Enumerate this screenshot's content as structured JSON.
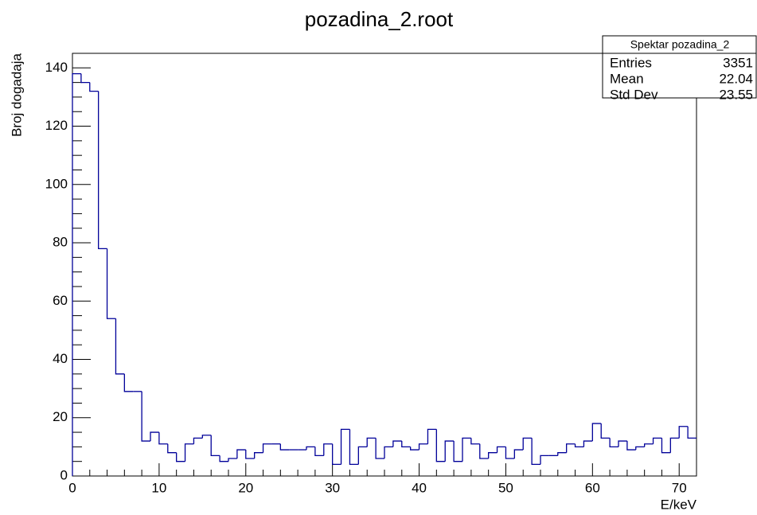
{
  "chart_data": {
    "type": "histogram",
    "title": "pozadina_2.root",
    "x_label": "E/keV",
    "y_label": "Broj dogadaja",
    "bins": [
      0,
      1,
      2,
      3,
      4,
      5,
      6,
      7,
      8,
      9,
      10,
      11,
      12,
      13,
      14,
      15,
      16,
      17,
      18,
      19,
      20,
      21,
      22,
      23,
      24,
      25,
      26,
      27,
      28,
      29,
      30,
      31,
      32,
      33,
      34,
      35,
      36,
      37,
      38,
      39,
      40,
      41,
      42,
      43,
      44,
      45,
      46,
      47,
      48,
      49,
      50,
      51,
      52,
      53,
      54,
      55,
      56,
      57,
      58,
      59,
      60,
      61,
      62,
      63,
      64,
      65,
      66,
      67,
      68,
      69,
      70,
      71,
      72
    ],
    "values": [
      138,
      135,
      132,
      78,
      54,
      35,
      29,
      29,
      12,
      15,
      11,
      8,
      5,
      11,
      13,
      14,
      7,
      5,
      6,
      9,
      6,
      8,
      11,
      11,
      9,
      9,
      9,
      10,
      7,
      11,
      4,
      16,
      4,
      10,
      13,
      6,
      10,
      12,
      10,
      9,
      11,
      16,
      5,
      12,
      5,
      13,
      11,
      6,
      8,
      10,
      6,
      9,
      13,
      4,
      7,
      7,
      8,
      11,
      10,
      12,
      18,
      13,
      10,
      12,
      9,
      10,
      11,
      13,
      8,
      13,
      17,
      13
    ],
    "color": "#000099",
    "xlim": [
      0,
      72
    ],
    "ylim": [
      0,
      145
    ],
    "xticks": [
      0,
      10,
      20,
      30,
      40,
      50,
      60,
      70
    ],
    "yticks": [
      0,
      20,
      40,
      60,
      80,
      100,
      120,
      140
    ],
    "stats": {
      "title": "Spektar pozadina_2",
      "rows": [
        {
          "label": "Entries",
          "value": 3351
        },
        {
          "label": "Mean",
          "value": 22.04
        },
        {
          "label": "Std Dev",
          "value": 23.55
        }
      ]
    }
  }
}
